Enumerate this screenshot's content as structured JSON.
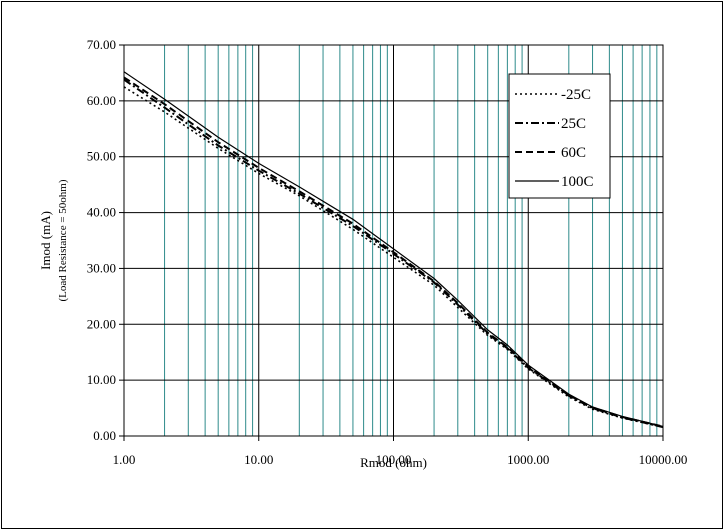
{
  "chart_data": {
    "type": "line",
    "xscale": "log",
    "xlim": [
      1,
      10000
    ],
    "ylim": [
      0,
      70
    ],
    "xlabel": "Rmod (ohm)",
    "ylabel": "Imod (mA)",
    "ylabel_sub": "(Load Resistance = 50ohm)",
    "x_tick_labels": [
      "1.00",
      "10.00",
      "100.00",
      "1000.00",
      "10000.00"
    ],
    "x_ticks": [
      1,
      10,
      100,
      1000,
      10000
    ],
    "y_tick_labels": [
      "0.00",
      "10.00",
      "20.00",
      "30.00",
      "40.00",
      "50.00",
      "60.00",
      "70.00"
    ],
    "y_ticks": [
      0,
      10,
      20,
      30,
      40,
      50,
      60,
      70
    ],
    "grid": true,
    "legend_position": "top-right",
    "colors": {
      "minor_grid": "#2e8b8b",
      "major_grid": "#000000",
      "series": "#000000"
    },
    "series": [
      {
        "name": "-25C",
        "style": "dotted",
        "x": [
          1,
          2,
          5,
          10,
          20,
          50,
          100,
          200,
          300,
          500,
          700,
          1000,
          2000,
          3000,
          5000,
          10000
        ],
        "y": [
          62.5,
          58.0,
          51.5,
          47.0,
          43.0,
          37.0,
          32.0,
          27.0,
          23.0,
          18.0,
          15.5,
          12.0,
          7.0,
          4.8,
          3.2,
          1.6
        ]
      },
      {
        "name": "25C",
        "style": "dash-dot",
        "x": [
          1,
          2,
          5,
          10,
          20,
          50,
          100,
          200,
          300,
          500,
          700,
          1000,
          2000,
          3000,
          5000,
          10000
        ],
        "y": [
          63.8,
          58.8,
          52.0,
          47.5,
          43.4,
          37.6,
          32.6,
          27.5,
          23.5,
          18.3,
          15.7,
          12.2,
          7.2,
          5.0,
          3.3,
          1.6
        ]
      },
      {
        "name": "60C",
        "style": "dashed",
        "x": [
          1,
          2,
          5,
          10,
          20,
          50,
          100,
          200,
          300,
          500,
          700,
          1000,
          2000,
          3000,
          5000,
          10000
        ],
        "y": [
          64.2,
          59.4,
          52.6,
          48.0,
          43.8,
          38.0,
          32.9,
          27.7,
          23.8,
          18.5,
          15.9,
          12.4,
          7.3,
          5.1,
          3.4,
          1.7
        ]
      },
      {
        "name": "100C",
        "style": "solid",
        "x": [
          1,
          2,
          5,
          10,
          20,
          50,
          100,
          200,
          300,
          500,
          700,
          1000,
          2000,
          3000,
          5000,
          10000
        ],
        "y": [
          65.2,
          60.3,
          53.5,
          48.8,
          44.6,
          38.8,
          33.5,
          28.2,
          24.3,
          19.0,
          16.3,
          12.7,
          7.5,
          5.2,
          3.5,
          1.7
        ]
      }
    ]
  }
}
